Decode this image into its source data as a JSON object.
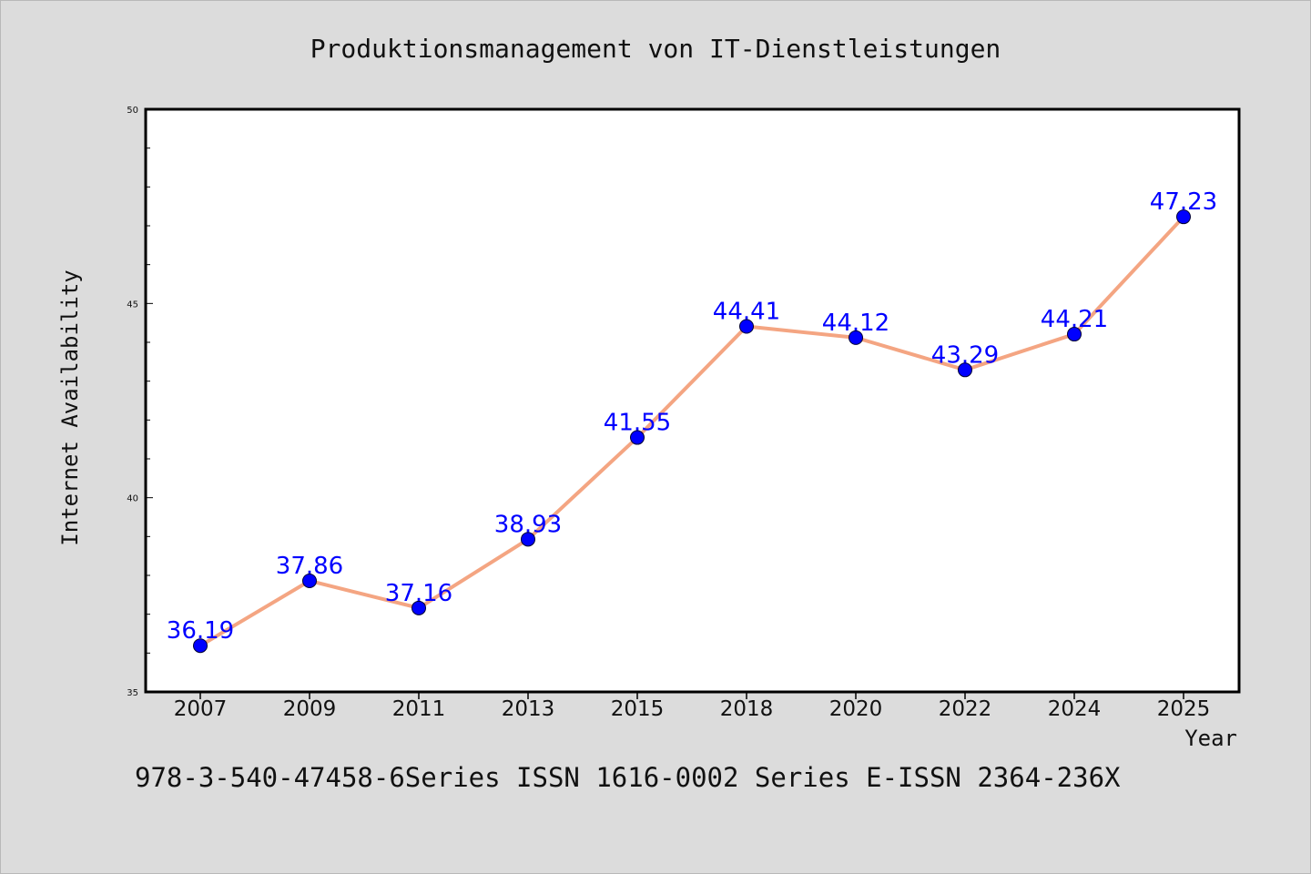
{
  "chart_data": {
    "type": "line",
    "title": "Produktionsmanagement von IT-Dienstleistungen",
    "xlabel": "Year",
    "ylabel": "Internet Availability",
    "categories": [
      "2007",
      "2009",
      "2011",
      "2013",
      "2015",
      "2018",
      "2020",
      "2022",
      "2024",
      "2025"
    ],
    "series": [
      {
        "values": [
          36.19,
          37.86,
          37.16,
          38.93,
          41.55,
          44.41,
          44.12,
          43.29,
          44.21,
          47.23
        ],
        "labels": [
          "36.19",
          "37.86",
          "37.16",
          "38.93",
          "41.55",
          "44.41",
          "44.12",
          "43.29",
          "44.21",
          "47.23"
        ],
        "line_color": "#f4a582",
        "marker_color": "#0000ff",
        "label_color": "#0000ff"
      }
    ],
    "ylim": [
      35,
      50
    ],
    "yticks": [
      "35",
      "40",
      "45",
      "50"
    ],
    "grid": false,
    "legend": "none"
  },
  "footer": {
    "text": "978-3-540-47458-6Series ISSN 1616-0002 Series E-ISSN 2364-236X"
  }
}
